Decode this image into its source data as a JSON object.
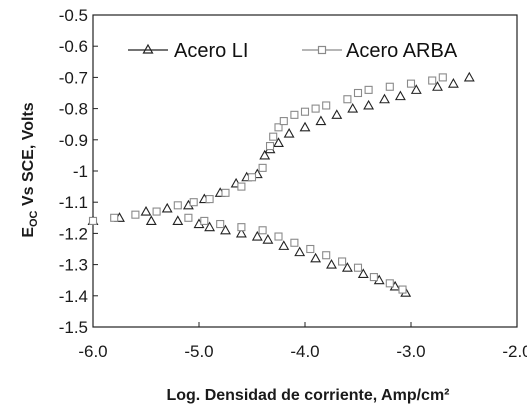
{
  "chart_data": {
    "type": "scatter",
    "title": "",
    "xlabel": "Log. Densidad de corriente, Amp/cm²",
    "ylabel": "E_OC Vs SCE, Volts",
    "ylabel_main": "E",
    "ylabel_sub": "OC",
    "ylabel_rest": " Vs SCE, Volts",
    "xlim": [
      -6.0,
      -2.0
    ],
    "ylim": [
      -1.5,
      -0.5
    ],
    "x_ticks": [
      "-6.0",
      "-5.0",
      "-4.0",
      "-3.0",
      "-2.0"
    ],
    "y_ticks": [
      "-0.5",
      "-0.6",
      "-0.7",
      "-0.8",
      "-0.9",
      "-1",
      "-1.1",
      "-1.2",
      "-1.3",
      "-1.4",
      "-1.5"
    ],
    "grid": false,
    "legend": "top",
    "series": [
      {
        "name": "Acero LI",
        "marker": "triangle",
        "color": "#222222",
        "x": [
          -6.0,
          -5.75,
          -5.5,
          -5.3,
          -5.1,
          -4.95,
          -4.8,
          -4.65,
          -4.55,
          -4.45,
          -4.38,
          -4.33,
          -4.25,
          -4.15,
          -4.0,
          -3.85,
          -3.7,
          -3.55,
          -3.4,
          -3.25,
          -3.1,
          -2.95,
          -2.75,
          -2.6,
          -2.45,
          -5.45,
          -5.2,
          -5.0,
          -4.9,
          -4.75,
          -4.6,
          -4.45,
          -4.35,
          -4.2,
          -4.05,
          -3.9,
          -3.75,
          -3.6,
          -3.45,
          -3.3,
          -3.15,
          -3.05
        ],
        "y": [
          -1.16,
          -1.15,
          -1.13,
          -1.12,
          -1.11,
          -1.09,
          -1.07,
          -1.04,
          -1.02,
          -1.01,
          -0.95,
          -0.93,
          -0.91,
          -0.88,
          -0.86,
          -0.84,
          -0.82,
          -0.8,
          -0.79,
          -0.77,
          -0.76,
          -0.74,
          -0.73,
          -0.72,
          -0.7,
          -1.16,
          -1.16,
          -1.17,
          -1.18,
          -1.19,
          -1.2,
          -1.21,
          -1.22,
          -1.24,
          -1.26,
          -1.28,
          -1.3,
          -1.31,
          -1.33,
          -1.35,
          -1.37,
          -1.39
        ]
      },
      {
        "name": "Acero ARBA",
        "marker": "square",
        "color": "#8a8a8a",
        "x": [
          -6.0,
          -5.8,
          -5.6,
          -5.4,
          -5.2,
          -5.05,
          -4.9,
          -4.75,
          -4.6,
          -4.5,
          -4.4,
          -4.33,
          -4.3,
          -4.25,
          -4.2,
          -4.1,
          -4.0,
          -3.9,
          -3.8,
          -3.6,
          -3.5,
          -3.4,
          -3.2,
          -3.0,
          -2.8,
          -2.7,
          -5.1,
          -4.95,
          -4.8,
          -4.6,
          -4.4,
          -4.25,
          -4.1,
          -3.95,
          -3.8,
          -3.65,
          -3.5,
          -3.35,
          -3.2,
          -3.08
        ],
        "y": [
          -1.16,
          -1.15,
          -1.14,
          -1.13,
          -1.11,
          -1.1,
          -1.09,
          -1.07,
          -1.05,
          -1.02,
          -0.99,
          -0.92,
          -0.89,
          -0.86,
          -0.84,
          -0.82,
          -0.81,
          -0.8,
          -0.79,
          -0.77,
          -0.75,
          -0.74,
          -0.73,
          -0.72,
          -0.71,
          -0.7,
          -1.15,
          -1.16,
          -1.17,
          -1.18,
          -1.19,
          -1.21,
          -1.23,
          -1.25,
          -1.27,
          -1.29,
          -1.31,
          -1.34,
          -1.36,
          -1.38
        ]
      }
    ]
  }
}
